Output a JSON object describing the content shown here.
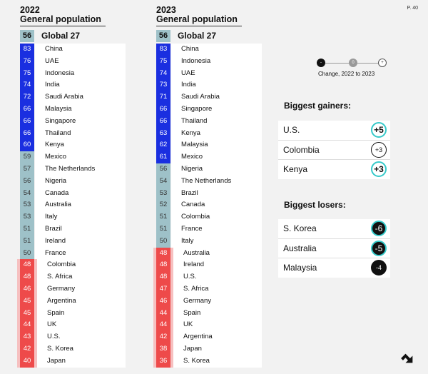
{
  "page_number": "P. 40",
  "colors": {
    "gain": "#1a2fe0",
    "neutral": "#9ec1c8",
    "loss": "#ee4a4a",
    "accent": "#35c9c9"
  },
  "legend": {
    "minus": "-",
    "zero": "0",
    "plus": "+",
    "caption": "Change, 2022 to 2023"
  },
  "chart_data": [
    {
      "type": "table",
      "title": "2022",
      "subtitle": "General population",
      "global": {
        "label": "Global 27",
        "value": 56
      },
      "rows": [
        {
          "country": "China",
          "value": 83,
          "band": "g"
        },
        {
          "country": "UAE",
          "value": 76,
          "band": "g"
        },
        {
          "country": "Indonesia",
          "value": 75,
          "band": "g"
        },
        {
          "country": "India",
          "value": 74,
          "band": "g"
        },
        {
          "country": "Saudi Arabia",
          "value": 72,
          "band": "g"
        },
        {
          "country": "Malaysia",
          "value": 66,
          "band": "g"
        },
        {
          "country": "Singapore",
          "value": 66,
          "band": "g"
        },
        {
          "country": "Thailand",
          "value": 66,
          "band": "g"
        },
        {
          "country": "Kenya",
          "value": 60,
          "band": "g"
        },
        {
          "country": "Mexico",
          "value": 59,
          "band": "n"
        },
        {
          "country": "The Netherlands",
          "value": 57,
          "band": "n"
        },
        {
          "country": "Nigeria",
          "value": 56,
          "band": "n"
        },
        {
          "country": "Canada",
          "value": 54,
          "band": "n"
        },
        {
          "country": "Australia",
          "value": 53,
          "band": "n"
        },
        {
          "country": "Italy",
          "value": 53,
          "band": "n"
        },
        {
          "country": "Brazil",
          "value": 51,
          "band": "n"
        },
        {
          "country": "Ireland",
          "value": 51,
          "band": "n"
        },
        {
          "country": "France",
          "value": 50,
          "band": "n"
        },
        {
          "country": "Colombia",
          "value": 48,
          "band": "l"
        },
        {
          "country": "S. Africa",
          "value": 48,
          "band": "l"
        },
        {
          "country": "Germany",
          "value": 46,
          "band": "l"
        },
        {
          "country": "Argentina",
          "value": 45,
          "band": "l"
        },
        {
          "country": "Spain",
          "value": 45,
          "band": "l"
        },
        {
          "country": "UK",
          "value": 44,
          "band": "l"
        },
        {
          "country": "U.S.",
          "value": 43,
          "band": "l"
        },
        {
          "country": "S. Korea",
          "value": 42,
          "band": "l"
        },
        {
          "country": "Japan",
          "value": 40,
          "band": "l"
        }
      ]
    },
    {
      "type": "table",
      "title": "2023",
      "subtitle": "General population",
      "global": {
        "label": "Global 27",
        "value": 56
      },
      "rows": [
        {
          "country": "China",
          "value": 83,
          "band": "g"
        },
        {
          "country": "Indonesia",
          "value": 75,
          "band": "g"
        },
        {
          "country": "UAE",
          "value": 74,
          "band": "g"
        },
        {
          "country": "India",
          "value": 73,
          "band": "g"
        },
        {
          "country": "Saudi Arabia",
          "value": 71,
          "band": "g"
        },
        {
          "country": "Singapore",
          "value": 66,
          "band": "g"
        },
        {
          "country": "Thailand",
          "value": 66,
          "band": "g"
        },
        {
          "country": "Kenya",
          "value": 63,
          "band": "g"
        },
        {
          "country": "Malaysia",
          "value": 62,
          "band": "g"
        },
        {
          "country": "Mexico",
          "value": 61,
          "band": "g"
        },
        {
          "country": "Nigeria",
          "value": 56,
          "band": "n"
        },
        {
          "country": "The Netherlands",
          "value": 54,
          "band": "n"
        },
        {
          "country": "Brazil",
          "value": 53,
          "band": "n"
        },
        {
          "country": "Canada",
          "value": 52,
          "band": "n"
        },
        {
          "country": "Colombia",
          "value": 51,
          "band": "n"
        },
        {
          "country": "France",
          "value": 51,
          "band": "n"
        },
        {
          "country": "Italy",
          "value": 50,
          "band": "n"
        },
        {
          "country": "Australia",
          "value": 48,
          "band": "l"
        },
        {
          "country": "Ireland",
          "value": 48,
          "band": "l"
        },
        {
          "country": "U.S.",
          "value": 48,
          "band": "l"
        },
        {
          "country": "S. Africa",
          "value": 47,
          "band": "l"
        },
        {
          "country": "Germany",
          "value": 46,
          "band": "l"
        },
        {
          "country": "Spain",
          "value": 44,
          "band": "l"
        },
        {
          "country": "UK",
          "value": 44,
          "band": "l"
        },
        {
          "country": "Argentina",
          "value": 42,
          "band": "l"
        },
        {
          "country": "Japan",
          "value": 38,
          "band": "l"
        },
        {
          "country": "S. Korea",
          "value": 36,
          "band": "l"
        }
      ]
    }
  ],
  "gainers": {
    "title": "Biggest gainers:",
    "items": [
      {
        "country": "U.S.",
        "change": "+5",
        "style": "big-up"
      },
      {
        "country": "Colombia",
        "change": "+3",
        "style": "small-up"
      },
      {
        "country": "Kenya",
        "change": "+3",
        "style": "big-up"
      }
    ]
  },
  "losers": {
    "title": "Biggest losers:",
    "items": [
      {
        "country": "S. Korea",
        "change": "-6",
        "style": "big-down"
      },
      {
        "country": "Australia",
        "change": "-5",
        "style": "big-down"
      },
      {
        "country": "Malaysia",
        "change": "-4",
        "style": "small-down"
      }
    ]
  }
}
